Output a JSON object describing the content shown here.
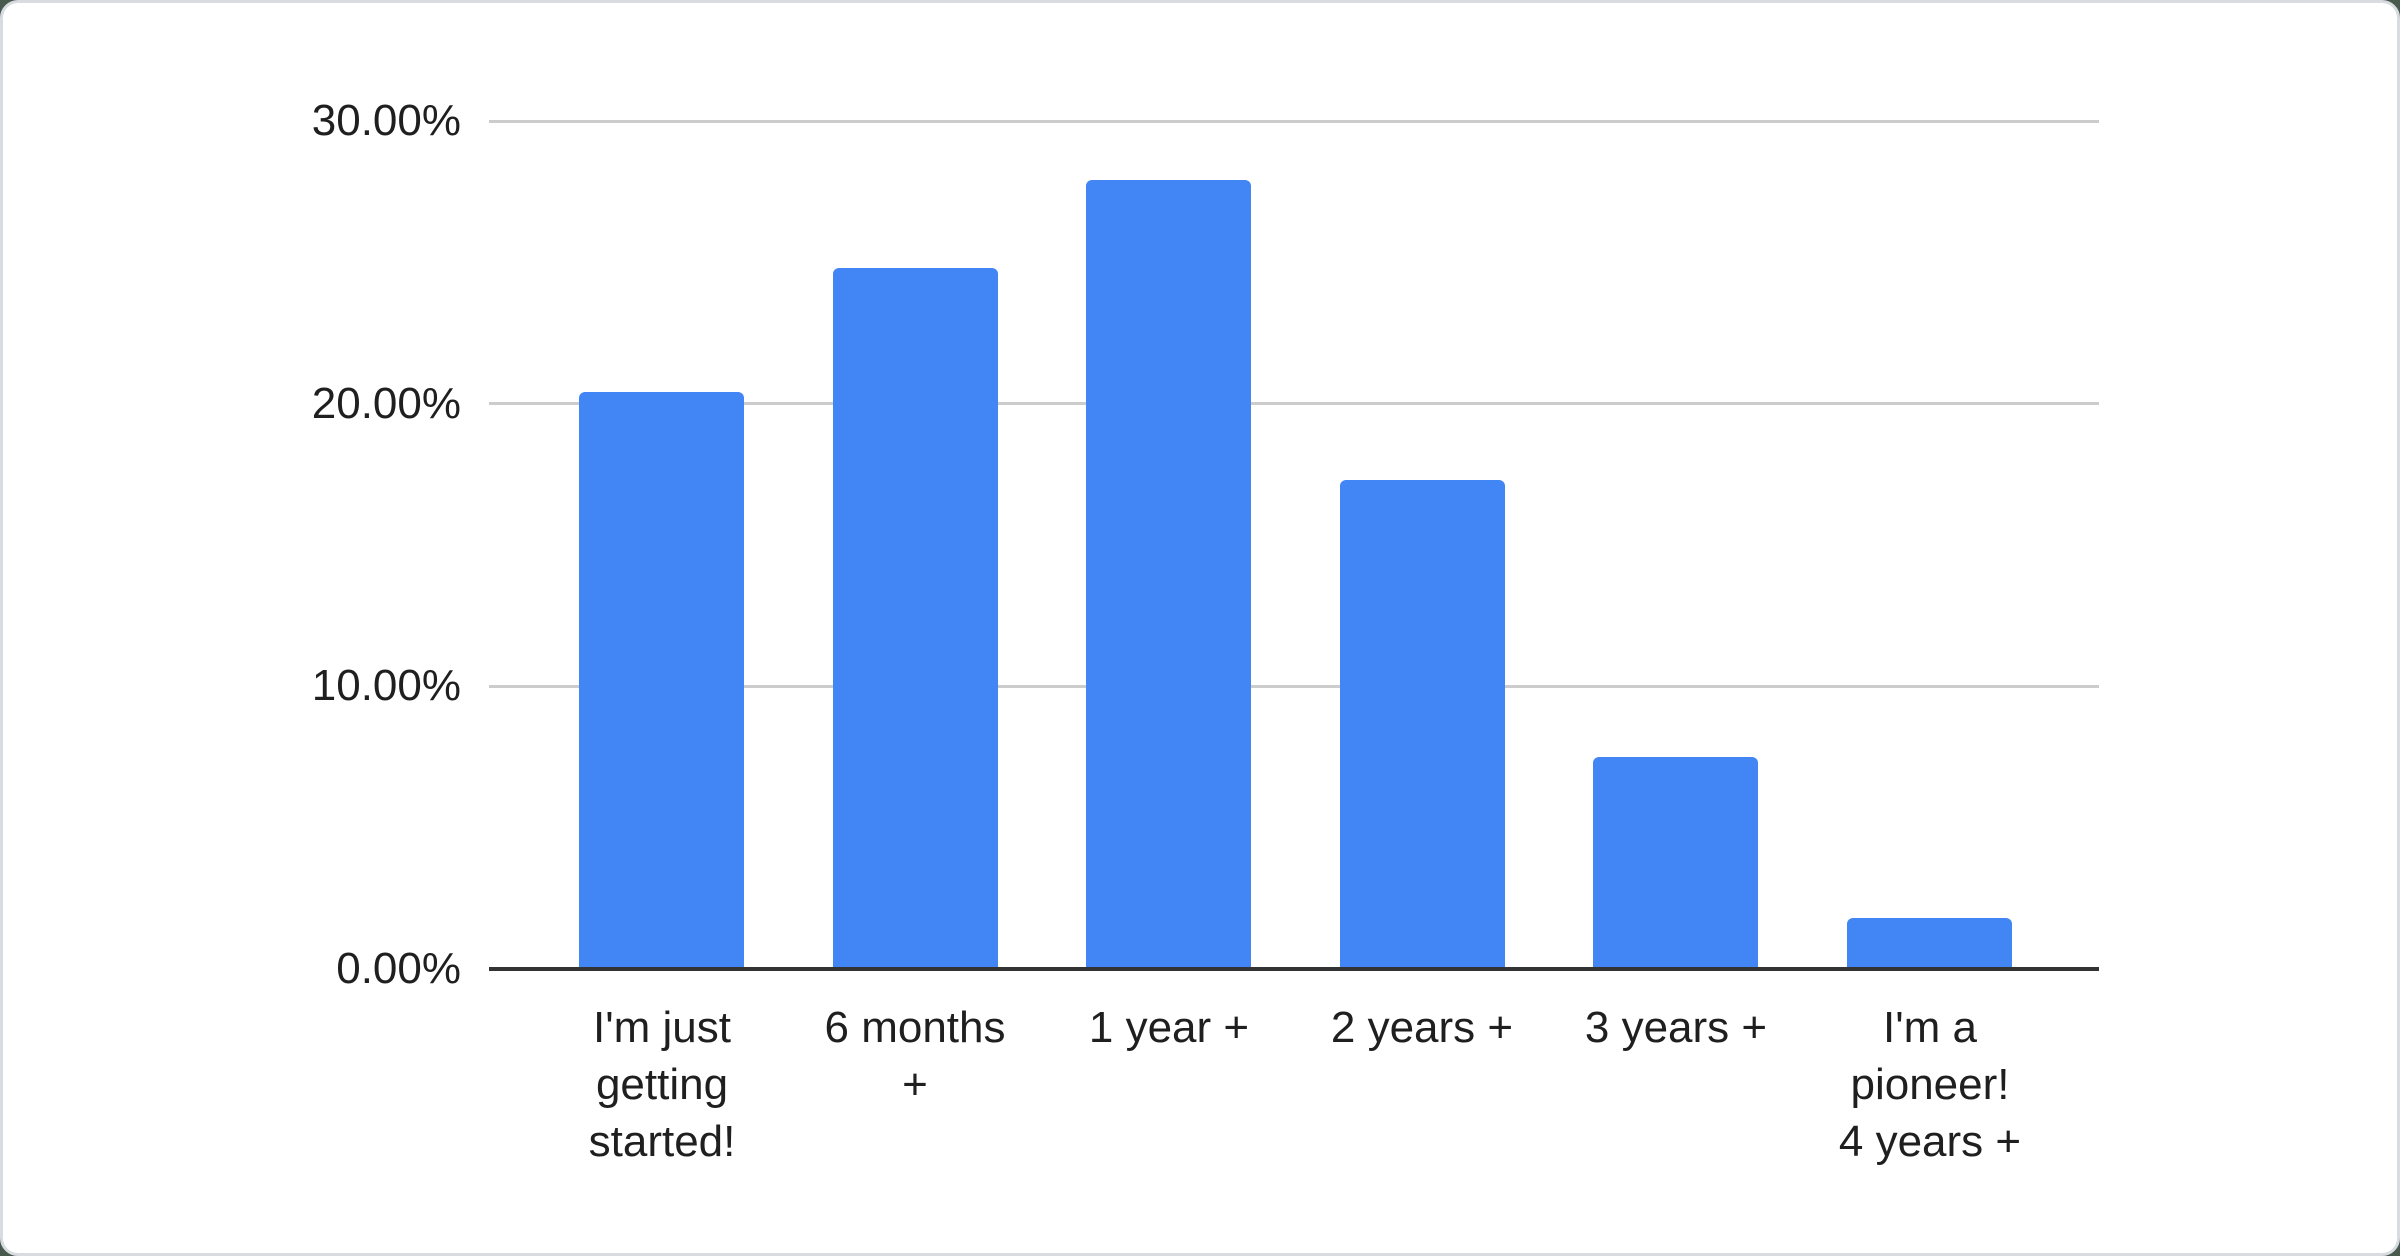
{
  "page": {
    "background_color": "#48594e",
    "card_background": "#ffffff",
    "card_border_color": "#d8dbdf"
  },
  "chart_data": {
    "type": "bar",
    "title": "",
    "xlabel": "",
    "ylabel": "",
    "categories": [
      "I'm just getting started!",
      "6 months +",
      "1 year +",
      "2 years +",
      "3 years +",
      "I'm a pioneer! 4 years +"
    ],
    "categories_lines": [
      [
        "I'm just",
        "getting",
        "started!"
      ],
      [
        "6 months",
        "+"
      ],
      [
        "1 year +"
      ],
      [
        "2 years +"
      ],
      [
        "3 years +"
      ],
      [
        "I'm a",
        "pioneer!",
        "4 years +"
      ]
    ],
    "values": [
      20.4,
      24.8,
      27.9,
      17.3,
      7.5,
      1.8
    ],
    "unit": "%",
    "ylim": [
      0,
      30
    ],
    "y_ticks": [
      {
        "value": 0,
        "label": "0.00%"
      },
      {
        "value": 10,
        "label": "10.00%"
      },
      {
        "value": 20,
        "label": "20.00%"
      },
      {
        "value": 30,
        "label": "30.00%"
      }
    ],
    "grid": true,
    "legend_position": "none",
    "bar_color": "#4285f4",
    "gridline_color": "#cccccc",
    "axis_line_color": "#333333",
    "text_color": "#1f1f1f"
  }
}
